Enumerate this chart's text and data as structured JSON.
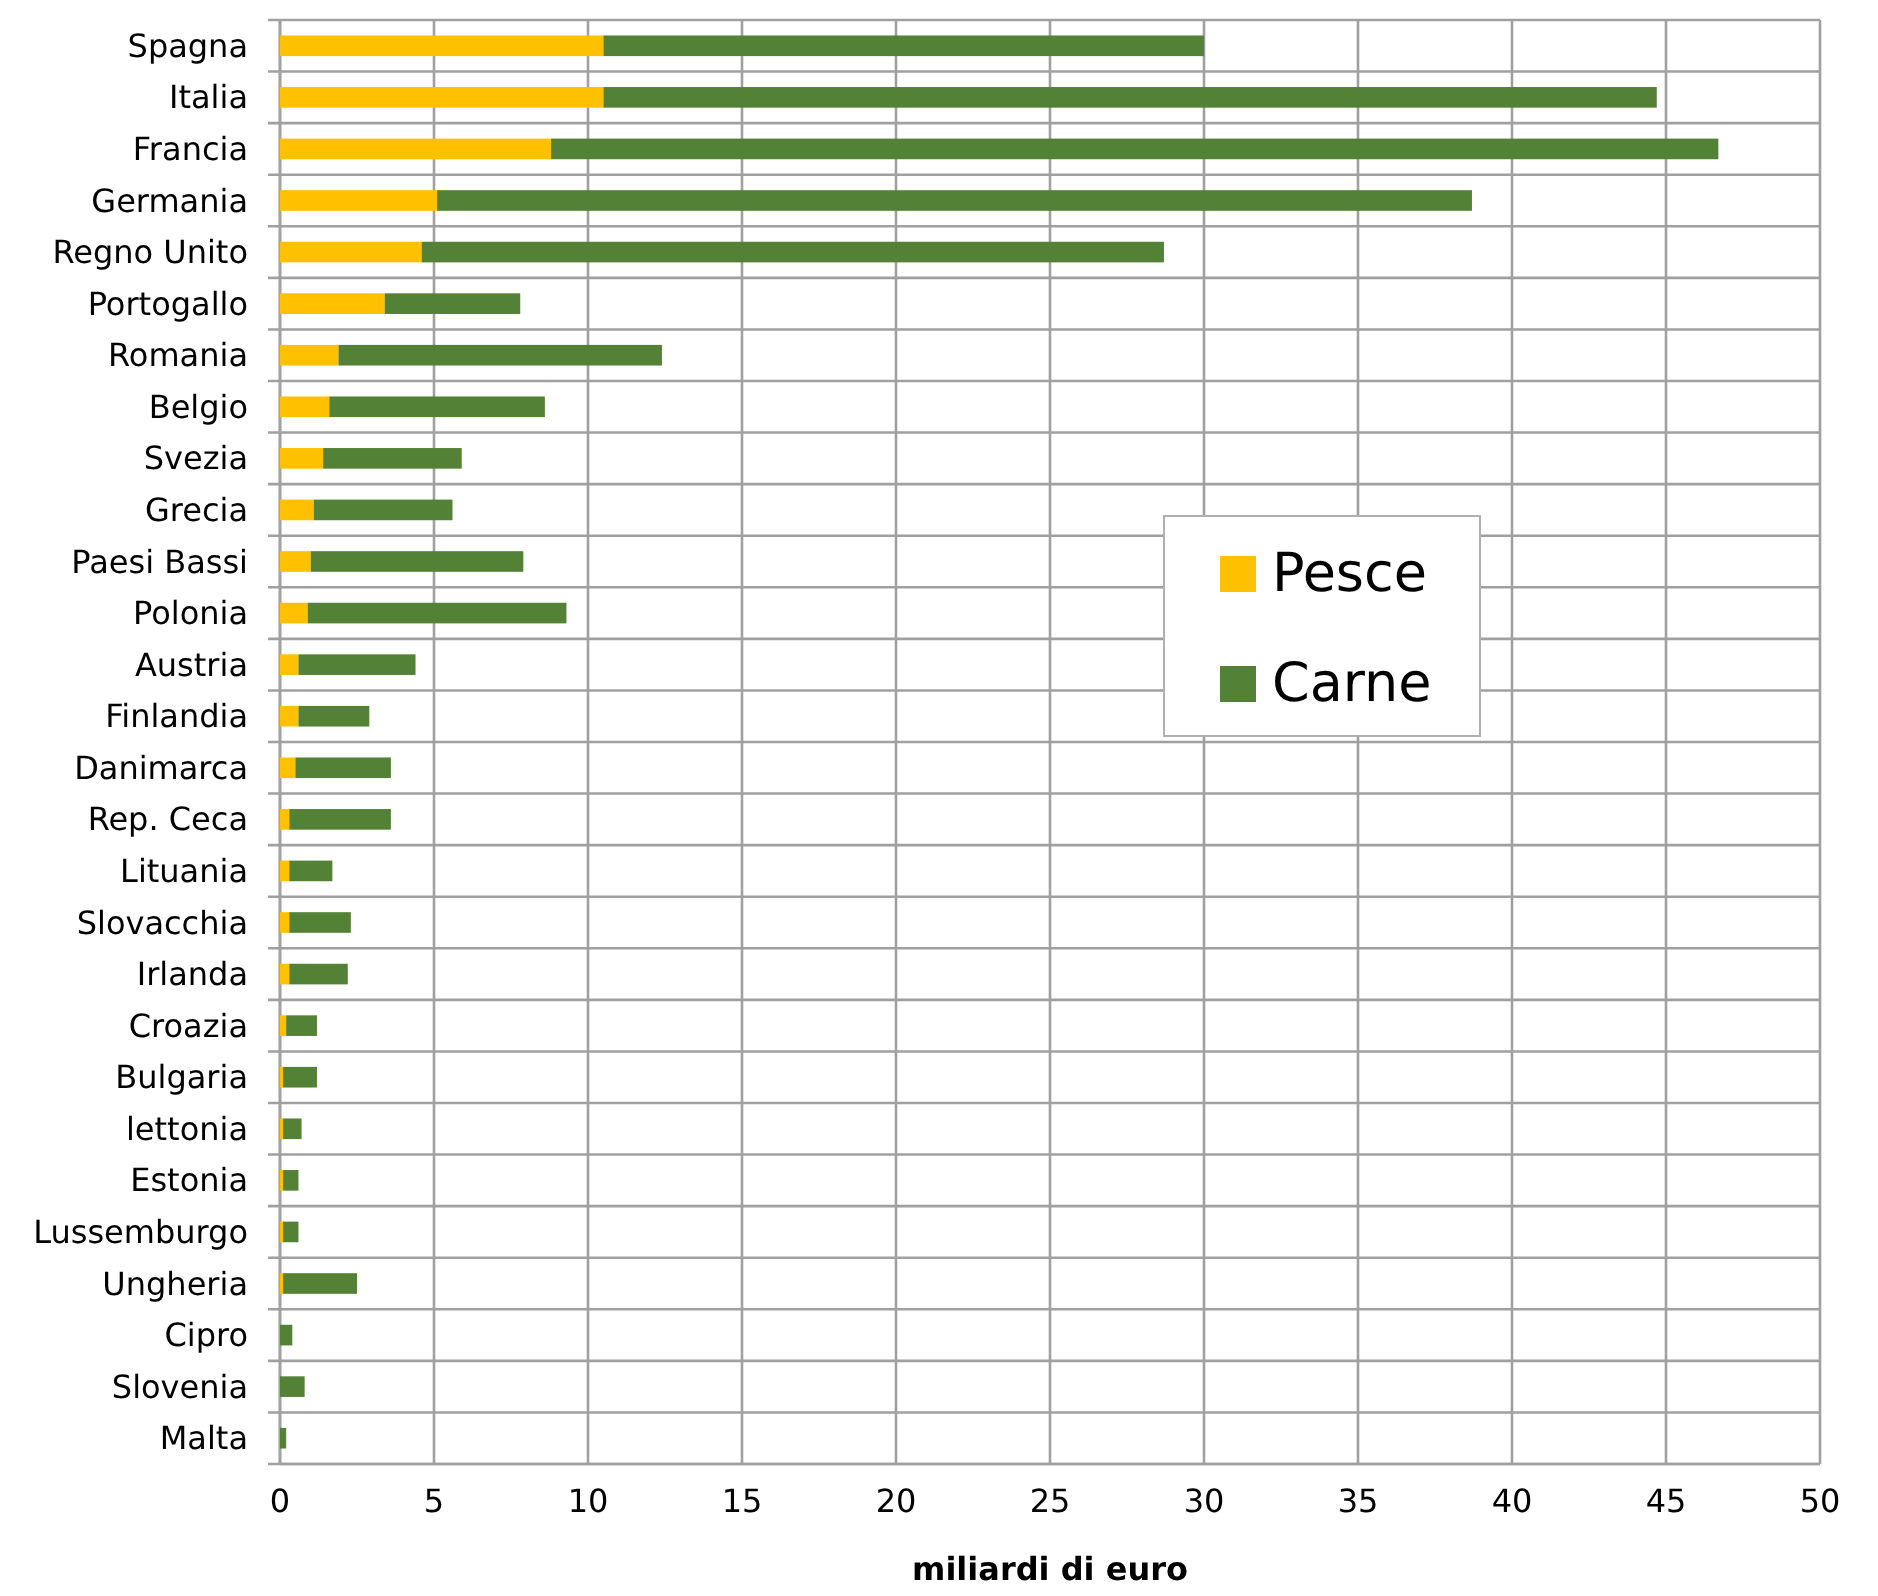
{
  "chart_data": {
    "type": "bar",
    "orientation": "horizontal",
    "stacked": true,
    "xlabel": "miliardi di euro",
    "categories": [
      "Spagna",
      "Italia",
      "Francia",
      "Germania",
      "Regno Unito",
      "Portogallo",
      "Romania",
      "Belgio",
      "Svezia",
      "Grecia",
      "Paesi Bassi",
      "Polonia",
      "Austria",
      "Finlandia",
      "Danimarca",
      "Rep. Ceca",
      "Lituania",
      "Slovacchia",
      "Irlanda",
      "Croazia",
      "Bulgaria",
      "lettonia",
      "Estonia",
      "Lussemburgo",
      "Ungheria",
      "Cipro",
      "Slovenia",
      "Malta"
    ],
    "series": [
      {
        "name": "Pesce",
        "color": "#ffc000",
        "values": [
          10.5,
          10.5,
          8.8,
          5.1,
          4.6,
          3.4,
          1.9,
          1.6,
          1.4,
          1.1,
          1.0,
          0.9,
          0.6,
          0.6,
          0.5,
          0.3,
          0.3,
          0.3,
          0.3,
          0.2,
          0.1,
          0.1,
          0.1,
          0.1,
          0.1,
          0.0,
          0.0,
          0.0
        ]
      },
      {
        "name": "Carne",
        "color": "#538135",
        "values": [
          19.5,
          34.2,
          37.9,
          33.6,
          24.1,
          4.4,
          10.5,
          7.0,
          4.5,
          4.5,
          6.9,
          8.4,
          3.8,
          2.3,
          3.1,
          3.3,
          1.4,
          2.0,
          1.9,
          1.0,
          1.1,
          0.6,
          0.5,
          0.5,
          2.4,
          0.4,
          0.8,
          0.2
        ]
      }
    ],
    "xlim": [
      0,
      50
    ],
    "xticks": [
      0,
      5,
      10,
      15,
      20,
      25,
      30,
      35,
      40,
      45,
      50
    ],
    "grid": true,
    "legend": "right"
  }
}
